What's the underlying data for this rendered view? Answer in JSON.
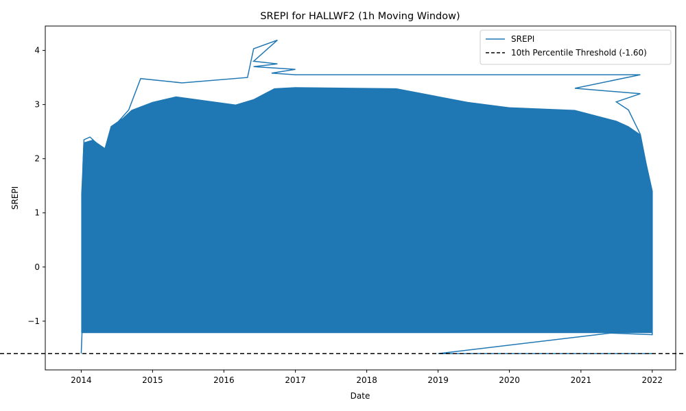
{
  "chart_data": {
    "type": "line",
    "title": "SREPI for HALLWF2 (1h Moving Window)",
    "xlabel": "Date",
    "ylabel": "SREPI",
    "x_ticks": [
      "2014",
      "2015",
      "2016",
      "2017",
      "2018",
      "2019",
      "2020",
      "2021",
      "2022"
    ],
    "y_ticks": [
      -1,
      0,
      1,
      2,
      3,
      4
    ],
    "y_tick_labels": [
      "−1",
      "0",
      "1",
      "2",
      "3",
      "4"
    ],
    "xlim": [
      "2013-07-01",
      "2022-05-01"
    ],
    "ylim": [
      -1.9,
      4.45
    ],
    "grid": false,
    "legend_position": "top-right",
    "series": [
      {
        "name": "SREPI",
        "color": "#1f77b4",
        "style": "solid",
        "points": [
          {
            "x": "2014-01-01",
            "y": -1.6
          },
          {
            "x": "2014-01-05",
            "y": -1.2
          },
          {
            "x": "2014-01-08",
            "y": 1.4
          },
          {
            "x": "2014-01-10",
            "y": 1.9
          },
          {
            "x": "2014-01-15",
            "y": 2.35
          },
          {
            "x": "2014-02-15",
            "y": 2.4
          },
          {
            "x": "2014-05-01",
            "y": 2.15
          },
          {
            "x": "2014-07-01",
            "y": 2.65
          },
          {
            "x": "2014-09-01",
            "y": 2.9
          },
          {
            "x": "2014-11-01",
            "y": 3.48
          },
          {
            "x": "2015-06-01",
            "y": 3.4
          },
          {
            "x": "2016-05-01",
            "y": 3.5
          },
          {
            "x": "2016-06-01",
            "y": 4.03
          },
          {
            "x": "2016-10-01",
            "y": 4.19
          },
          {
            "x": "2016-06-01",
            "y": 3.8
          },
          {
            "x": "2016-10-01",
            "y": 3.75
          },
          {
            "x": "2016-06-01",
            "y": 3.7
          },
          {
            "x": "2017-01-01",
            "y": 3.65
          },
          {
            "x": "2016-09-01",
            "y": 3.58
          },
          {
            "x": "2017-01-01",
            "y": 3.55
          },
          {
            "x": "2021-11-01",
            "y": 3.55
          },
          {
            "x": "2020-12-01",
            "y": 3.3
          },
          {
            "x": "2021-11-01",
            "y": 3.2
          },
          {
            "x": "2021-07-01",
            "y": 3.05
          },
          {
            "x": "2021-09-01",
            "y": 2.9
          },
          {
            "x": "2021-11-01",
            "y": 2.45
          },
          {
            "x": "2021-12-01",
            "y": 1.9
          },
          {
            "x": "2022-01-01",
            "y": 1.4
          },
          {
            "x": "2022-01-01",
            "y": -1.25
          },
          {
            "x": "2021-06-01",
            "y": -1.22
          },
          {
            "x": "2019-01-01",
            "y": -1.6
          },
          {
            "x": "2022-01-01",
            "y": -1.6
          }
        ]
      },
      {
        "name": "10th Percentile Threshold (-1.60)",
        "color": "#000000",
        "style": "dashed",
        "y": -1.6
      }
    ]
  }
}
